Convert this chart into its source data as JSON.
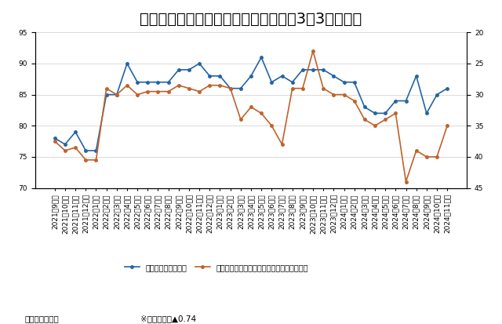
{
  "title": "消費者マインドアンケート調査（最近3年3ヵ月間）",
  "source_note": "（出所）内閣府",
  "corr_note": "※相関係数：▲0.74",
  "legend1": "物価見通し判断ＤＩ",
  "legend2": "暮らし向き判断ＤＩ（逆目盛り、右目盛り）",
  "x_labels": [
    "2021年9月分",
    "2021年10月分",
    "2021年11月分",
    "2021年12月分",
    "2022年1月分",
    "2022年2月分",
    "2022年3月分",
    "2022年4月分",
    "2022年5月分",
    "2022年6月分",
    "2022年7月分",
    "2022年8月分",
    "2022年9月分",
    "2022年10月分",
    "2022年11月分",
    "2022年12月分",
    "2023年1月分",
    "2023年2月分",
    "2023年3月分",
    "2023年4月分",
    "2023年5月分",
    "2023年6月分",
    "2023年7月分",
    "2023年8月分",
    "2023年9月分",
    "2023年10月分",
    "2023年11月分",
    "2023年12月分",
    "2024年1月分",
    "2024年2月分",
    "2024年3月分",
    "2024年4月分",
    "2024年5月分",
    "2024年6月分",
    "2024年7月分",
    "2024年8月分",
    "2024年9月分",
    "2024年10月分",
    "2024年11月分"
  ],
  "blue_data": [
    78,
    77,
    79,
    76,
    76,
    85,
    85,
    90,
    87,
    87,
    87,
    87,
    89,
    89,
    90,
    88,
    88,
    86,
    86,
    88,
    91,
    87,
    88,
    87,
    89,
    89,
    89,
    88,
    87,
    87,
    83,
    82,
    82,
    84,
    84,
    88,
    82,
    85,
    86
  ],
  "orange_data_right": [
    37.5,
    39.0,
    38.5,
    40.5,
    40.5,
    29.0,
    30.0,
    28.5,
    30.0,
    29.5,
    29.5,
    29.5,
    28.5,
    29.0,
    29.5,
    28.5,
    28.5,
    29.0,
    34.0,
    32.0,
    33.0,
    35.0,
    38.0,
    29.0,
    29.0,
    23.0,
    29.0,
    30.0,
    30.0,
    31.0,
    34.0,
    35.0,
    34.0,
    33.0,
    44.0,
    39.0,
    40.0,
    40.0,
    35.0
  ],
  "left_ylim": [
    70,
    95
  ],
  "left_yticks": [
    70,
    75,
    80,
    85,
    90,
    95
  ],
  "right_ylim": [
    45,
    20
  ],
  "right_yticks": [
    20,
    25,
    30,
    35,
    40,
    45
  ],
  "blue_color": "#2464a4",
  "orange_color": "#c0622a",
  "title_fontsize": 14,
  "tick_label_fontsize": 6.5
}
